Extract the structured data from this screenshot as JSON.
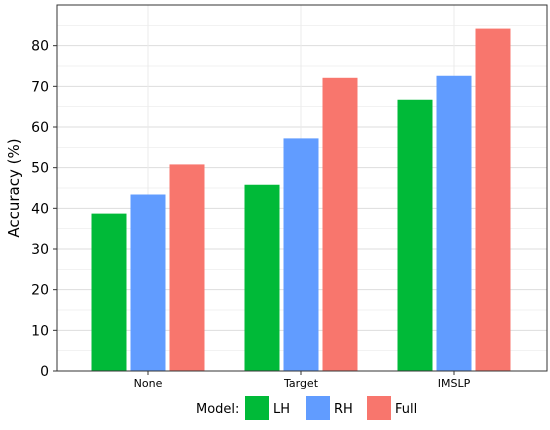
{
  "chart_data": {
    "type": "bar",
    "title": "",
    "xlabel": "",
    "ylabel": "Accuracy (%)",
    "categories": [
      "None",
      "Target",
      "IMSLP"
    ],
    "series": [
      {
        "name": "LH",
        "values": [
          38.7,
          45.8,
          66.7
        ],
        "color": "#00BA38"
      },
      {
        "name": "RH",
        "values": [
          43.4,
          57.2,
          72.6
        ],
        "color": "#619CFF"
      },
      {
        "name": "Full",
        "values": [
          50.8,
          72.1,
          84.2
        ],
        "color": "#F8766D"
      }
    ],
    "ylim": [
      0,
      90
    ],
    "yticks": [
      0,
      10,
      20,
      30,
      40,
      50,
      60,
      70,
      80
    ],
    "grid": true,
    "legend": {
      "title": "Model:",
      "placement": "bottom"
    }
  }
}
